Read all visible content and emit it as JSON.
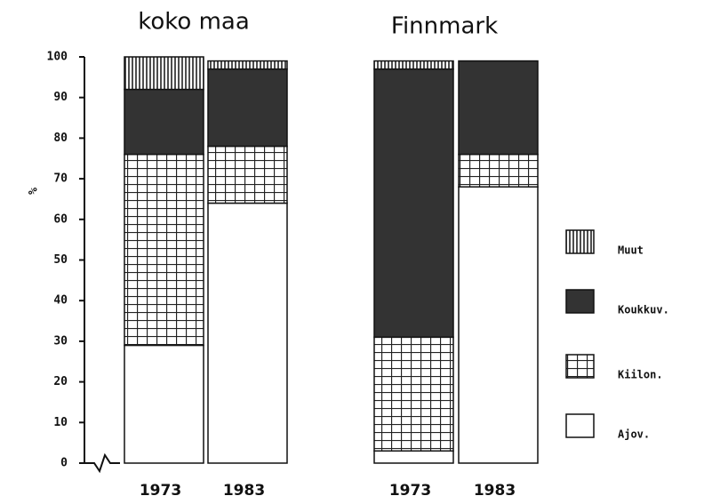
{
  "chart_data": {
    "type": "stacked-bar",
    "group_labels": [
      "koko maa",
      "Finnmark"
    ],
    "categories": [
      "1973",
      "1983",
      "1973",
      "1983"
    ],
    "ylabel": "%",
    "ylim": [
      0,
      100
    ],
    "yticks": [
      0,
      10,
      20,
      30,
      40,
      50,
      60,
      70,
      80,
      90,
      100
    ],
    "series": [
      {
        "name": "Ajov.",
        "color": "#ffffff",
        "pattern": "solid",
        "values": [
          29,
          64,
          3,
          68
        ]
      },
      {
        "name": "Kiilon.",
        "color": "#222222",
        "pattern": "grid",
        "values": [
          47,
          14,
          28,
          8
        ]
      },
      {
        "name": "Koukkuv.",
        "color": "#333333",
        "pattern": "solid",
        "values": [
          16,
          19,
          66,
          23
        ]
      },
      {
        "name": "Muut",
        "color": "#222222",
        "pattern": "vertical",
        "values": [
          8,
          2,
          2,
          0
        ]
      }
    ]
  }
}
